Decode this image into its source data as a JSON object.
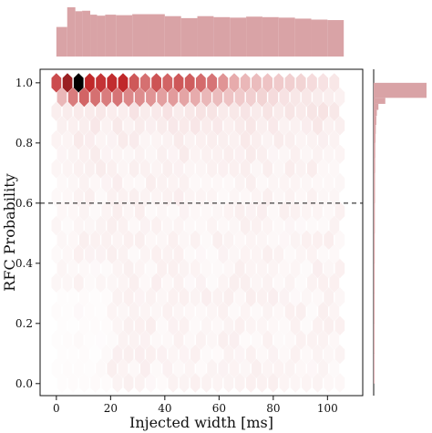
{
  "chart_data": {
    "type": "hexbin-jointplot",
    "xlabel": "Injected width [ms]",
    "ylabel": "RFC Probability",
    "xlim": [
      -6,
      113
    ],
    "ylim": [
      -0.04,
      1.045
    ],
    "xticks": [
      0,
      20,
      40,
      60,
      80,
      100
    ],
    "yticks": [
      0.0,
      0.2,
      0.4,
      0.6,
      0.8,
      1.0
    ],
    "xtick_labels": [
      "0",
      "20",
      "40",
      "60",
      "80",
      "100"
    ],
    "ytick_labels": [
      "0.0",
      "0.2",
      "0.4",
      "0.6",
      "0.8",
      "1.0"
    ],
    "threshold_line": {
      "y": 0.6,
      "style": "dashed"
    },
    "color": "#c0282a",
    "hist_color": "#d9a3a6",
    "hex_grid": {
      "x_min": 0,
      "x_max": 106,
      "x_step": 4.1,
      "y_min": 0,
      "y_max": 1,
      "y_step": 0.0475
    },
    "top_row_density": [
      0.75,
      0.92,
      1.0,
      0.9,
      0.85,
      0.88,
      0.9,
      0.7,
      0.6,
      0.72,
      0.65,
      0.7,
      0.68,
      0.62,
      0.58,
      0.45,
      0.35,
      0.3,
      0.28,
      0.25,
      0.22,
      0.2,
      0.18,
      0.15,
      0.12,
      0.1
    ],
    "second_row_density": [
      0.3,
      0.55,
      0.65,
      0.6,
      0.55,
      0.58,
      0.5,
      0.48,
      0.45,
      0.4,
      0.42,
      0.38,
      0.35,
      0.3,
      0.28,
      0.25,
      0.22,
      0.2,
      0.18,
      0.15,
      0.12,
      0.1,
      0.1,
      0.08,
      0.07,
      0.06
    ],
    "x_marginal": {
      "bin_edges": [
        0,
        4,
        7,
        9.5,
        12.5,
        15,
        18,
        22,
        28,
        34,
        40,
        46,
        52,
        58,
        64,
        70,
        76,
        82,
        88,
        94,
        100,
        106
      ],
      "counts": [
        0.6,
        1.0,
        0.92,
        0.93,
        0.85,
        0.83,
        0.85,
        0.84,
        0.86,
        0.86,
        0.82,
        0.78,
        0.82,
        0.8,
        0.79,
        0.81,
        0.8,
        0.79,
        0.77,
        0.75,
        0.74
      ]
    },
    "y_marginal": {
      "bin_edges": [
        0.97,
        0.95,
        0.93,
        0.91,
        0.89,
        0.86,
        0.83,
        0.8,
        0.75,
        0.7,
        0.6,
        0.5,
        0.4,
        0.3,
        0.2,
        0.1,
        0.0
      ],
      "counts": [
        1.0,
        0.22,
        0.09,
        0.06,
        0.05,
        0.04,
        0.035,
        0.03,
        0.028,
        0.025,
        0.022,
        0.02,
        0.018,
        0.017,
        0.016,
        0.015
      ]
    }
  }
}
